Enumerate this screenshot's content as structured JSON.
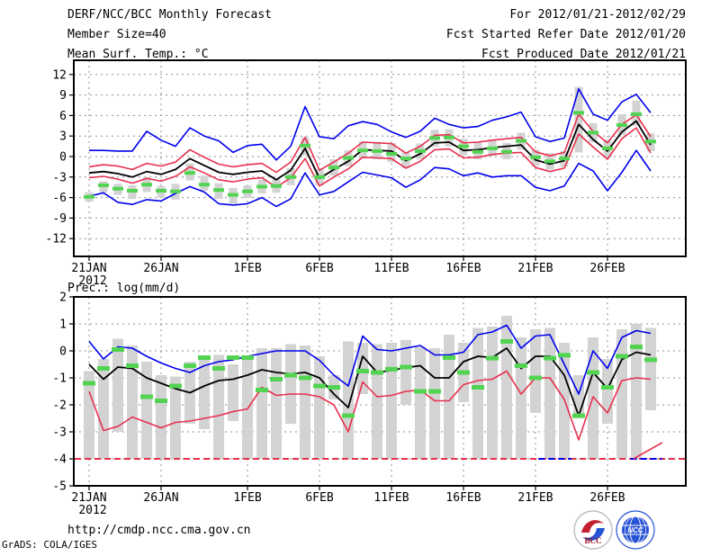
{
  "header": {
    "title": "DERF/NCC/BCC Monthly Forecast",
    "member_size": "Member Size=40",
    "temp_label": "Mean Surf. Temp.: °C",
    "forecast_range": "For 2012/01/21-2012/02/29",
    "refer_date": "Fcst Started Refer Date 2012/01/20",
    "produced_date": "Fcst Produced Date 2012/01/21"
  },
  "footer": {
    "url": "http://cmdp.ncc.cma.gov.cn",
    "grads_credit": "GrADS: COLA/IGES",
    "bcc_logo_text": "BCC",
    "ncc_logo_text": "NCC"
  },
  "colors": {
    "line_blue": "#0000ee",
    "line_red": "#e8304e",
    "line_black": "#000000",
    "obs_green": "#52d452",
    "bar_gray": "#d3d3d3",
    "grid_gray": "#8f8f8f",
    "frame_black": "#000000",
    "logo_blue": "#2753d6",
    "logo_red": "#c42030",
    "logo_dark_red": "#9c1420"
  },
  "x_axis": {
    "tick_labels": [
      "21JAN",
      "26JAN",
      "1FEB",
      "6FEB",
      "11FEB",
      "16FEB",
      "21FEB",
      "26FEB"
    ],
    "tick_days": [
      0,
      5,
      11,
      16,
      21,
      26,
      31,
      36
    ],
    "year_label": "2012",
    "n_points": 40
  },
  "chart_data": [
    {
      "type": "line",
      "name": "mean-surface-temperature",
      "title": "Mean Surf. Temp.: °C",
      "ylabel_ticks": [
        -12,
        -9,
        -6,
        -3,
        0,
        3,
        6,
        9,
        12
      ],
      "ylim": [
        -14.3,
        14.1
      ],
      "grid": true,
      "series": [
        {
          "name": "ensemble-max",
          "color": "blue",
          "values": [
            0.9,
            0.9,
            0.8,
            0.8,
            3.7,
            2.4,
            1.5,
            4.2,
            3.0,
            2.3,
            0.6,
            1.6,
            1.8,
            -0.5,
            1.5,
            7.3,
            2.9,
            2.6,
            4.5,
            5.1,
            4.7,
            3.6,
            2.8,
            3.7,
            5.6,
            4.7,
            4.2,
            4.4,
            5.3,
            5.8,
            6.5,
            2.9,
            2.2,
            2.7,
            9.9,
            6.2,
            5.3,
            8.0,
            9.1,
            6.4
          ]
        },
        {
          "name": "ensemble-min",
          "color": "blue",
          "values": [
            -5.8,
            -5.3,
            -6.7,
            -7.0,
            -6.3,
            -6.5,
            -5.4,
            -4.4,
            -5.2,
            -6.9,
            -7.1,
            -6.9,
            -6.0,
            -7.3,
            -6.2,
            -2.4,
            -5.6,
            -5.1,
            -3.7,
            -2.3,
            -2.7,
            -3.1,
            -4.5,
            -3.4,
            -1.6,
            -1.8,
            -2.8,
            -2.4,
            -3.0,
            -2.8,
            -2.8,
            -4.5,
            -5.0,
            -4.3,
            -1.0,
            -2.1,
            -5.0,
            -2.3,
            0.9,
            -2.1
          ]
        },
        {
          "name": "mean-plus-std",
          "color": "red",
          "values": [
            -1.5,
            -1.2,
            -1.4,
            -1.9,
            -1.0,
            -1.4,
            -0.8,
            1.0,
            -0.1,
            -1.1,
            -1.5,
            -1.2,
            -1.0,
            -2.3,
            -0.8,
            2.8,
            -2.0,
            -0.8,
            0.5,
            2.1,
            2.0,
            1.9,
            0.5,
            1.5,
            3.1,
            3.2,
            2.0,
            2.1,
            2.4,
            2.6,
            2.8,
            0.7,
            0.1,
            0.6,
            6.2,
            3.7,
            2.0,
            4.7,
            6.1,
            2.9
          ]
        },
        {
          "name": "mean-minus-std",
          "color": "red",
          "values": [
            -3.1,
            -2.9,
            -3.3,
            -3.9,
            -3.2,
            -3.6,
            -2.9,
            -1.5,
            -2.4,
            -3.4,
            -3.7,
            -3.3,
            -3.1,
            -4.5,
            -3.1,
            -0.3,
            -4.3,
            -3.0,
            -1.8,
            -0.1,
            -0.2,
            -0.3,
            -1.7,
            -0.7,
            1.0,
            1.1,
            -0.2,
            -0.1,
            0.3,
            0.5,
            0.6,
            -1.6,
            -2.2,
            -1.7,
            3.3,
            1.4,
            -0.4,
            2.6,
            4.2,
            0.5
          ]
        },
        {
          "name": "ensemble-mean",
          "color": "black",
          "values": [
            -2.4,
            -2.2,
            -2.5,
            -3.0,
            -2.2,
            -2.6,
            -1.9,
            -0.3,
            -1.3,
            -2.3,
            -2.6,
            -2.3,
            -2.1,
            -3.4,
            -2.0,
            1.2,
            -3.2,
            -1.9,
            -0.7,
            1.0,
            0.9,
            0.8,
            -0.6,
            0.4,
            2.0,
            2.1,
            0.9,
            1.0,
            1.3,
            1.5,
            1.7,
            -0.5,
            -1.1,
            -0.6,
            4.7,
            2.5,
            0.8,
            3.6,
            5.2,
            1.7
          ]
        }
      ],
      "obs_dashes": {
        "name": "observation",
        "color": "green",
        "values": [
          -5.9,
          -4.2,
          -4.7,
          -5.0,
          -4.1,
          -5.0,
          -5.1,
          -2.4,
          -4.1,
          -4.9,
          -5.6,
          -5.1,
          -4.4,
          -4.3,
          -3.0,
          1.6,
          -3.0,
          -1.6,
          -0.2,
          0.9,
          0.8,
          0.4,
          -0.3,
          0.8,
          2.7,
          2.8,
          1.5,
          0.7,
          1.2,
          0.7,
          2.3,
          -0.1,
          -0.7,
          -0.3,
          6.4,
          3.5,
          1.2,
          4.6,
          6.2,
          2.2
        ]
      },
      "bars": {
        "lo": [
          -6.6,
          -5.2,
          -5.6,
          -6.2,
          -5.2,
          -6.0,
          -6.3,
          -3.5,
          -5.0,
          -6.2,
          -7.0,
          -6.1,
          -5.4,
          -5.3,
          -4.2,
          0.2,
          -4.2,
          -2.8,
          -1.4,
          -0.3,
          -0.4,
          -0.8,
          -1.7,
          -0.4,
          1.4,
          1.5,
          0.2,
          -0.4,
          0.1,
          -0.4,
          1.0,
          -1.4,
          -1.9,
          -1.5,
          0.6,
          2.1,
          -0.1,
          3.1,
          4.5,
          0.8
        ],
        "hi": [
          -5.2,
          -3.6,
          -4.0,
          -4.2,
          -3.0,
          -4.3,
          -4.0,
          -1.0,
          -2.8,
          -3.9,
          -4.6,
          -4.2,
          -3.4,
          -3.3,
          -1.7,
          2.8,
          -1.8,
          -0.4,
          0.9,
          2.2,
          2.1,
          2.0,
          0.6,
          1.9,
          3.9,
          4.0,
          2.6,
          2.2,
          2.5,
          2.0,
          3.5,
          1.0,
          0.5,
          0.8,
          10.2,
          4.9,
          2.5,
          6.2,
          8.2,
          3.4
        ]
      }
    },
    {
      "type": "line",
      "name": "precipitation",
      "title": "Prec.: log(mm/d)",
      "ylabel_ticks": [
        -5,
        -4,
        -3,
        -2,
        -1,
        0,
        1,
        2
      ],
      "ylim": [
        -5,
        2
      ],
      "grid": true,
      "floor_line": {
        "value": -4,
        "color": "red",
        "style": "dashed"
      },
      "floor_blue_segments_days": [
        [
          31.2,
          33.5
        ],
        [
          37.6,
          39.8
        ]
      ],
      "floor_red_uptick": {
        "from_day": 37.8,
        "from_value": -4,
        "to_day": 39.8,
        "to_value": -3.4
      },
      "series": [
        {
          "name": "upper-envelope",
          "color": "blue",
          "values": [
            0.35,
            -0.3,
            0.15,
            0.1,
            -0.2,
            -0.45,
            -0.65,
            -0.8,
            -0.55,
            -0.4,
            -0.33,
            -0.2,
            -0.1,
            0.0,
            0.0,
            0.0,
            -0.35,
            -0.9,
            -1.3,
            0.55,
            0.05,
            0.0,
            0.1,
            0.2,
            -0.15,
            -0.15,
            -0.05,
            0.6,
            0.7,
            0.95,
            0.1,
            0.55,
            0.6,
            -0.5,
            -1.6,
            0.0,
            -0.65,
            0.5,
            0.75,
            0.65
          ]
        },
        {
          "name": "lower-envelope",
          "color": "red",
          "values": [
            -1.5,
            -2.95,
            -2.8,
            -2.45,
            -2.65,
            -2.85,
            -2.65,
            -2.6,
            -2.5,
            -2.4,
            -2.25,
            -2.15,
            -1.35,
            -1.65,
            -1.6,
            -1.6,
            -1.7,
            -2.0,
            -3.0,
            -1.15,
            -1.7,
            -1.65,
            -1.5,
            -1.45,
            -1.85,
            -1.85,
            -1.25,
            -1.1,
            -1.05,
            -0.75,
            -1.6,
            -1.0,
            -1.0,
            -1.8,
            -3.3,
            -1.7,
            -2.3,
            -1.1,
            -1.0,
            -1.05
          ]
        },
        {
          "name": "ensemble-mean",
          "color": "black",
          "values": [
            -0.5,
            -1.05,
            -0.6,
            -0.65,
            -1.0,
            -1.2,
            -1.4,
            -1.55,
            -1.3,
            -1.1,
            -1.05,
            -0.9,
            -0.7,
            -0.8,
            -0.85,
            -0.8,
            -1.0,
            -1.6,
            -2.1,
            -0.2,
            -0.8,
            -0.72,
            -0.62,
            -0.55,
            -1.0,
            -1.0,
            -0.4,
            -0.2,
            -0.25,
            0.1,
            -0.65,
            -0.2,
            -0.2,
            -0.9,
            -2.4,
            -0.8,
            -1.4,
            -0.32,
            -0.05,
            -0.15
          ]
        }
      ],
      "obs_dashes": {
        "name": "observation",
        "color": "green",
        "values": [
          -1.2,
          -0.65,
          0.05,
          -0.55,
          -1.7,
          -1.85,
          -1.3,
          -0.55,
          -0.25,
          -0.65,
          -0.25,
          -0.25,
          -1.45,
          -1.05,
          -0.9,
          -1.0,
          -1.3,
          -1.35,
          -2.4,
          -0.75,
          -0.8,
          -0.68,
          -0.6,
          -1.5,
          -1.5,
          -0.25,
          -0.8,
          -1.35,
          -0.27,
          0.35,
          -0.55,
          -1.0,
          -0.27,
          -0.16,
          -2.4,
          -0.8,
          -1.35,
          -0.2,
          0.15,
          -0.33
        ]
      },
      "bars": {
        "lo": [
          -4,
          -4,
          -3.0,
          -4,
          -4,
          -4,
          -4,
          -2.7,
          -2.9,
          -4,
          -2.6,
          -4,
          -4,
          -4,
          -2.7,
          -4,
          -4,
          -1.8,
          -4,
          -1.6,
          -4,
          -4,
          -2.0,
          -4,
          -4,
          -4,
          -1.9,
          -4,
          -4,
          -4,
          -4,
          -2.3,
          -4,
          -4,
          -2.5,
          -4,
          -2.7,
          -4,
          -4,
          -2.2
        ],
        "hi": [
          -0.75,
          -0.3,
          0.45,
          0.2,
          -0.4,
          -0.9,
          -0.95,
          -0.4,
          -0.3,
          -0.15,
          -0.5,
          -0.25,
          0.1,
          0.1,
          0.25,
          0.2,
          -0.2,
          -0.9,
          0.35,
          0.3,
          0.25,
          0.3,
          0.4,
          0.15,
          0.1,
          0.6,
          0.3,
          0.85,
          0.9,
          1.3,
          0.5,
          0.8,
          0.85,
          0.3,
          -0.9,
          0.5,
          -0.3,
          0.8,
          1.0,
          0.85
        ]
      }
    }
  ]
}
